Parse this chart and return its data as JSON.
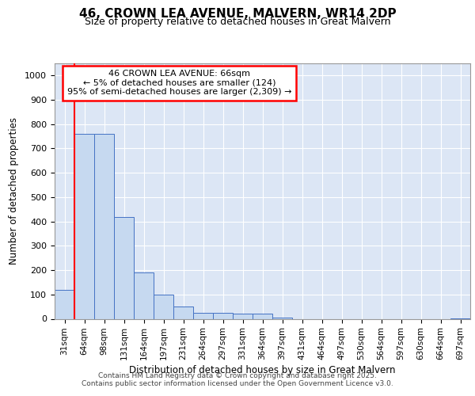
{
  "title1": "46, CROWN LEA AVENUE, MALVERN, WR14 2DP",
  "title2": "Size of property relative to detached houses in Great Malvern",
  "xlabel": "Distribution of detached houses by size in Great Malvern",
  "ylabel": "Number of detached properties",
  "categories": [
    "31sqm",
    "64sqm",
    "98sqm",
    "131sqm",
    "164sqm",
    "197sqm",
    "231sqm",
    "264sqm",
    "297sqm",
    "331sqm",
    "364sqm",
    "397sqm",
    "431sqm",
    "464sqm",
    "497sqm",
    "530sqm",
    "564sqm",
    "597sqm",
    "630sqm",
    "664sqm",
    "697sqm"
  ],
  "values": [
    120,
    760,
    760,
    420,
    190,
    100,
    50,
    25,
    25,
    20,
    20,
    5,
    0,
    0,
    0,
    0,
    0,
    0,
    0,
    0,
    3
  ],
  "bar_color": "#c6d9f0",
  "bar_edge_color": "#4472c4",
  "red_line_bin": 1,
  "annotation_box_text": "46 CROWN LEA AVENUE: 66sqm\n← 5% of detached houses are smaller (124)\n95% of semi-detached houses are larger (2,309) →",
  "ylim": [
    0,
    1050
  ],
  "yticks": [
    0,
    100,
    200,
    300,
    400,
    500,
    600,
    700,
    800,
    900,
    1000
  ],
  "fig_bg_color": "#ffffff",
  "plot_bg_color": "#dce6f5",
  "grid_color": "#ffffff",
  "footer1": "Contains HM Land Registry data © Crown copyright and database right 2025.",
  "footer2": "Contains public sector information licensed under the Open Government Licence v3.0."
}
